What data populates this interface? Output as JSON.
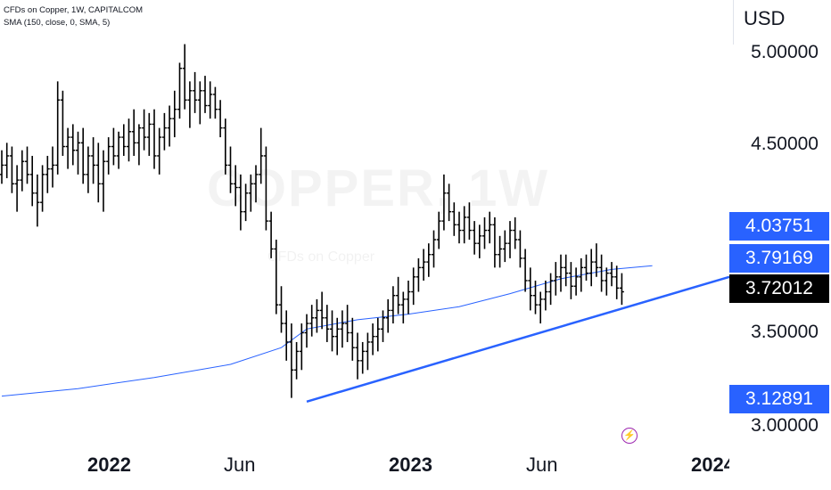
{
  "header": {
    "title": "CFDs on Copper, 1W, CAPITALCOM",
    "indicator": "SMA (150, close, 0, SMA, 5)"
  },
  "watermark": {
    "symbol": "COPPER, 1W",
    "description": "CFDs on Copper"
  },
  "price_axis": {
    "currency": "USD",
    "labels": [
      "5.00000",
      "4.50000",
      "3.50000",
      "3.00000"
    ]
  },
  "price_tags": [
    {
      "label": "4.03751",
      "value": 4.03751,
      "color": "#2962ff"
    },
    {
      "label": "3.79169",
      "value": 3.79169,
      "color": "#2962ff"
    },
    {
      "label": "3.72012",
      "value": 3.72012,
      "color": "#000000"
    },
    {
      "label": "3.12891",
      "value": 3.12891,
      "color": "#2962ff"
    }
  ],
  "time_axis": {
    "labels": [
      {
        "text": "2022",
        "kind": "year"
      },
      {
        "text": "Jun",
        "kind": "month"
      },
      {
        "text": "2023",
        "kind": "year"
      },
      {
        "text": "Jun",
        "kind": "month"
      },
      {
        "text": "2024",
        "kind": "year"
      }
    ]
  },
  "colors": {
    "bars": "#000000",
    "sma": "#2962ff",
    "trendline": "#2962ff",
    "alert_icon": "#9c27b0"
  },
  "icons": {
    "alert": "lightning-bolt-icon"
  },
  "chart_data": {
    "type": "ohlc",
    "symbol": "CFDs on Copper",
    "interval": "1W",
    "x_unit": "week",
    "ylim": [
      2.85,
      5.2
    ],
    "bars": [
      [
        4.35,
        4.48,
        4.3,
        4.4
      ],
      [
        4.4,
        4.52,
        4.33,
        4.45
      ],
      [
        4.45,
        4.5,
        4.25,
        4.3
      ],
      [
        4.3,
        4.4,
        4.15,
        4.32
      ],
      [
        4.32,
        4.48,
        4.26,
        4.42
      ],
      [
        4.42,
        4.5,
        4.3,
        4.35
      ],
      [
        4.35,
        4.45,
        4.18,
        4.25
      ],
      [
        4.25,
        4.35,
        4.07,
        4.2
      ],
      [
        4.2,
        4.4,
        4.15,
        4.35
      ],
      [
        4.35,
        4.45,
        4.25,
        4.38
      ],
      [
        4.38,
        4.5,
        4.28,
        4.4
      ],
      [
        4.4,
        4.85,
        4.35,
        4.75
      ],
      [
        4.75,
        4.8,
        4.45,
        4.5
      ],
      [
        4.5,
        4.6,
        4.38,
        4.55
      ],
      [
        4.55,
        4.62,
        4.4,
        4.48
      ],
      [
        4.48,
        4.58,
        4.35,
        4.52
      ],
      [
        4.52,
        4.6,
        4.3,
        4.35
      ],
      [
        4.35,
        4.5,
        4.25,
        4.45
      ],
      [
        4.45,
        4.55,
        4.3,
        4.4
      ],
      [
        4.4,
        4.52,
        4.2,
        4.3
      ],
      [
        4.3,
        4.48,
        4.15,
        4.42
      ],
      [
        4.42,
        4.55,
        4.35,
        4.5
      ],
      [
        4.5,
        4.6,
        4.4,
        4.45
      ],
      [
        4.45,
        4.58,
        4.38,
        4.55
      ],
      [
        4.55,
        4.62,
        4.45,
        4.5
      ],
      [
        4.5,
        4.65,
        4.42,
        4.58
      ],
      [
        4.58,
        4.7,
        4.45,
        4.52
      ],
      [
        4.52,
        4.62,
        4.4,
        4.6
      ],
      [
        4.6,
        4.7,
        4.48,
        4.55
      ],
      [
        4.55,
        4.68,
        4.45,
        4.62
      ],
      [
        4.62,
        4.7,
        4.38,
        4.45
      ],
      [
        4.45,
        4.6,
        4.35,
        4.55
      ],
      [
        4.55,
        4.68,
        4.48,
        4.6
      ],
      [
        4.6,
        4.72,
        4.5,
        4.65
      ],
      [
        4.65,
        4.8,
        4.55,
        4.7
      ],
      [
        4.7,
        4.95,
        4.65,
        4.92
      ],
      [
        4.92,
        5.05,
        4.7,
        4.75
      ],
      [
        4.75,
        4.85,
        4.6,
        4.8
      ],
      [
        4.8,
        4.9,
        4.68,
        4.75
      ],
      [
        4.75,
        4.85,
        4.62,
        4.8
      ],
      [
        4.8,
        4.88,
        4.68,
        4.72
      ],
      [
        4.72,
        4.85,
        4.65,
        4.78
      ],
      [
        4.78,
        4.82,
        4.65,
        4.7
      ],
      [
        4.7,
        4.75,
        4.55,
        4.6
      ],
      [
        4.6,
        4.65,
        4.35,
        4.4
      ],
      [
        4.4,
        4.5,
        4.25,
        4.3
      ],
      [
        4.3,
        4.4,
        4.18,
        4.28
      ],
      [
        4.28,
        4.35,
        4.05,
        4.15
      ],
      [
        4.15,
        4.3,
        4.1,
        4.25
      ],
      [
        4.25,
        4.35,
        4.15,
        4.3
      ],
      [
        4.3,
        4.4,
        4.2,
        4.35
      ],
      [
        4.35,
        4.6,
        4.3,
        4.45
      ],
      [
        4.45,
        4.5,
        4.05,
        4.1
      ],
      [
        4.1,
        4.15,
        3.9,
        3.95
      ],
      [
        3.95,
        4.0,
        3.6,
        3.65
      ],
      [
        3.65,
        3.75,
        3.5,
        3.55
      ],
      [
        3.55,
        3.62,
        3.35,
        3.45
      ],
      [
        3.45,
        3.55,
        3.15,
        3.3
      ],
      [
        3.3,
        3.45,
        3.25,
        3.4
      ],
      [
        3.4,
        3.55,
        3.3,
        3.5
      ],
      [
        3.5,
        3.6,
        3.42,
        3.55
      ],
      [
        3.55,
        3.65,
        3.48,
        3.58
      ],
      [
        3.58,
        3.68,
        3.5,
        3.62
      ],
      [
        3.62,
        3.72,
        3.52,
        3.58
      ],
      [
        3.58,
        3.65,
        3.45,
        3.52
      ],
      [
        3.52,
        3.62,
        3.4,
        3.48
      ],
      [
        3.48,
        3.58,
        3.38,
        3.52
      ],
      [
        3.52,
        3.62,
        3.42,
        3.55
      ],
      [
        3.55,
        3.65,
        3.45,
        3.5
      ],
      [
        3.5,
        3.58,
        3.35,
        3.42
      ],
      [
        3.42,
        3.5,
        3.25,
        3.35
      ],
      [
        3.35,
        3.45,
        3.28,
        3.4
      ],
      [
        3.4,
        3.5,
        3.3,
        3.45
      ],
      [
        3.45,
        3.55,
        3.38,
        3.48
      ],
      [
        3.48,
        3.58,
        3.4,
        3.52
      ],
      [
        3.52,
        3.62,
        3.45,
        3.58
      ],
      [
        3.58,
        3.68,
        3.5,
        3.62
      ],
      [
        3.62,
        3.75,
        3.55,
        3.7
      ],
      [
        3.7,
        3.8,
        3.6,
        3.65
      ],
      [
        3.65,
        3.72,
        3.55,
        3.68
      ],
      [
        3.68,
        3.78,
        3.6,
        3.72
      ],
      [
        3.72,
        3.85,
        3.65,
        3.8
      ],
      [
        3.8,
        3.9,
        3.72,
        3.85
      ],
      [
        3.85,
        3.95,
        3.78,
        3.88
      ],
      [
        3.88,
        3.98,
        3.8,
        3.92
      ],
      [
        3.92,
        4.05,
        3.85,
        4.0
      ],
      [
        4.0,
        4.15,
        3.95,
        4.1
      ],
      [
        4.1,
        4.35,
        4.05,
        4.25
      ],
      [
        4.25,
        4.3,
        4.1,
        4.15
      ],
      [
        4.15,
        4.2,
        4.02,
        4.08
      ],
      [
        4.08,
        4.15,
        3.98,
        4.05
      ],
      [
        4.05,
        4.18,
        3.98,
        4.12
      ],
      [
        4.12,
        4.2,
        4.0,
        4.05
      ],
      [
        4.05,
        4.1,
        3.92,
        3.98
      ],
      [
        3.98,
        4.08,
        3.9,
        4.02
      ],
      [
        4.02,
        4.12,
        3.95,
        4.05
      ],
      [
        4.05,
        4.15,
        3.98,
        4.08
      ],
      [
        4.08,
        4.12,
        3.85,
        3.92
      ],
      [
        3.92,
        4.02,
        3.85,
        3.95
      ],
      [
        3.95,
        4.05,
        3.88,
        3.98
      ],
      [
        3.98,
        4.1,
        3.9,
        4.05
      ],
      [
        4.05,
        4.12,
        3.95,
        4.0
      ],
      [
        4.0,
        4.05,
        3.85,
        3.9
      ],
      [
        3.9,
        3.95,
        3.72,
        3.78
      ],
      [
        3.78,
        3.85,
        3.62,
        3.7
      ],
      [
        3.7,
        3.78,
        3.6,
        3.65
      ],
      [
        3.65,
        3.72,
        3.55,
        3.68
      ],
      [
        3.68,
        3.78,
        3.62,
        3.72
      ],
      [
        3.72,
        3.82,
        3.65,
        3.78
      ],
      [
        3.78,
        3.88,
        3.7,
        3.8
      ],
      [
        3.8,
        3.92,
        3.72,
        3.85
      ],
      [
        3.85,
        3.92,
        3.75,
        3.82
      ],
      [
        3.82,
        3.88,
        3.68,
        3.75
      ],
      [
        3.75,
        3.85,
        3.7,
        3.8
      ],
      [
        3.8,
        3.9,
        3.72,
        3.85
      ],
      [
        3.85,
        3.92,
        3.78,
        3.82
      ],
      [
        3.82,
        3.95,
        3.75,
        3.88
      ],
      [
        3.88,
        3.98,
        3.8,
        3.85
      ],
      [
        3.85,
        3.92,
        3.72,
        3.78
      ],
      [
        3.78,
        3.85,
        3.7,
        3.82
      ],
      [
        3.82,
        3.88,
        3.75,
        3.8
      ],
      [
        3.8,
        3.86,
        3.68,
        3.74
      ],
      [
        3.74,
        3.82,
        3.65,
        3.72
      ]
    ],
    "sma": {
      "name": "SMA (150, close, 0, SMA, 5)",
      "points": [
        [
          0,
          3.16
        ],
        [
          15,
          3.2
        ],
        [
          30,
          3.26
        ],
        [
          45,
          3.33
        ],
        [
          55,
          3.42
        ],
        [
          60,
          3.52
        ],
        [
          70,
          3.57
        ],
        [
          80,
          3.6
        ],
        [
          90,
          3.64
        ],
        [
          100,
          3.71
        ],
        [
          110,
          3.79
        ],
        [
          120,
          3.84
        ],
        [
          128,
          3.86
        ]
      ]
    },
    "trendline": {
      "points": [
        [
          60,
          3.13
        ],
        [
          150,
          3.8
        ]
      ]
    }
  }
}
